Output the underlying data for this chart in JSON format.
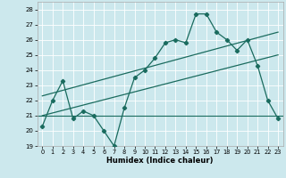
{
  "xlabel": "Humidex (Indice chaleur)",
  "xlim": [
    -0.5,
    23.5
  ],
  "ylim": [
    19,
    28.5
  ],
  "yticks": [
    19,
    20,
    21,
    22,
    23,
    24,
    25,
    26,
    27,
    28
  ],
  "xticks": [
    0,
    1,
    2,
    3,
    4,
    5,
    6,
    7,
    8,
    9,
    10,
    11,
    12,
    13,
    14,
    15,
    16,
    17,
    18,
    19,
    20,
    21,
    22,
    23
  ],
  "bg_color": "#cce8ed",
  "line_color": "#1a6b5e",
  "grid_color": "#ffffff",
  "line1_x": [
    0,
    1,
    2,
    3,
    4,
    5,
    6,
    7,
    8,
    9,
    10,
    11,
    12,
    13,
    14,
    15,
    16,
    17,
    18,
    19,
    20,
    21,
    22,
    23
  ],
  "line1_y": [
    20.3,
    22.0,
    23.3,
    20.8,
    21.3,
    21.0,
    20.0,
    19.0,
    21.5,
    23.5,
    24.0,
    24.8,
    25.8,
    26.0,
    25.8,
    27.7,
    27.7,
    26.5,
    26.0,
    25.3,
    26.0,
    24.3,
    22.0,
    20.8
  ],
  "line2_x": [
    0,
    23
  ],
  "line2_y": [
    22.3,
    26.5
  ],
  "line3_x": [
    0,
    23
  ],
  "line3_y": [
    21.0,
    25.0
  ],
  "hline_y": 21.0
}
